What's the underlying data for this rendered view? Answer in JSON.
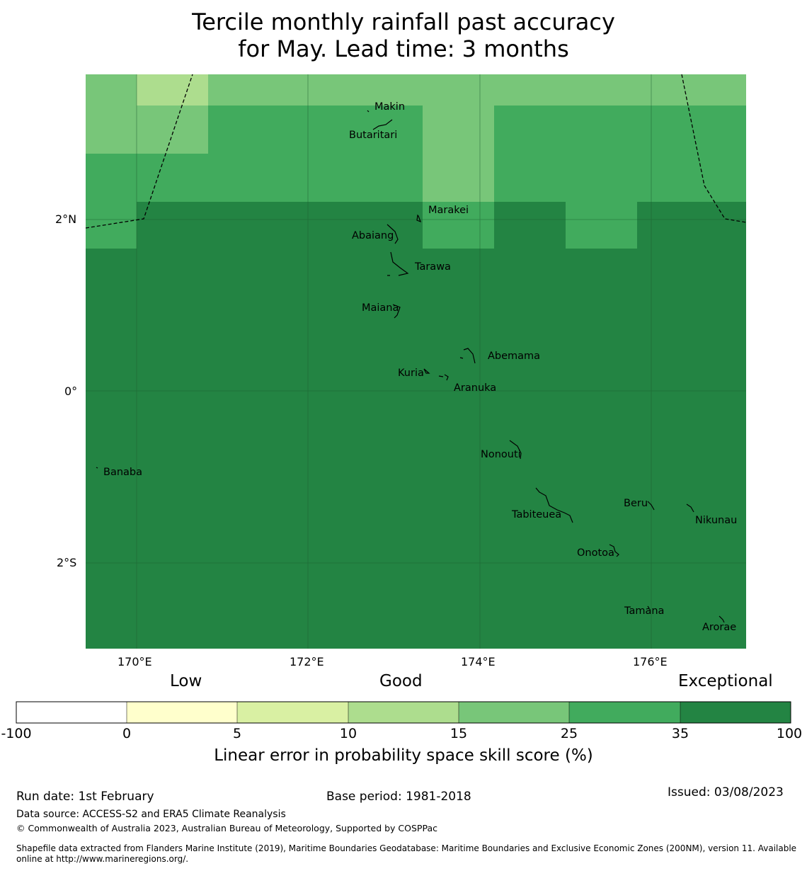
{
  "title": {
    "line1": "Tercile monthly rainfall past accuracy",
    "line2": "for May. Lead time: 3 months"
  },
  "map": {
    "lon_range": [
      169.4,
      177.1
    ],
    "lat_range": [
      -3.0,
      3.7
    ],
    "x_ticks": [
      "170°E",
      "172°E",
      "174°E",
      "176°E"
    ],
    "y_ticks": [
      "2°N",
      "0°",
      "2°S"
    ],
    "islands": [
      {
        "name": "Makin",
        "lon": 173.0,
        "lat": 3.35
      },
      {
        "name": "Butaritari",
        "lon": 172.85,
        "lat": 3.15
      },
      {
        "name": "Marakei",
        "lon": 173.3,
        "lat": 2.0
      },
      {
        "name": "Abaiang",
        "lon": 172.95,
        "lat": 1.85
      },
      {
        "name": "Tarawa",
        "lon": 173.05,
        "lat": 1.4
      },
      {
        "name": "Maiana",
        "lon": 173.0,
        "lat": 0.95
      },
      {
        "name": "Abemama",
        "lon": 173.85,
        "lat": 0.4
      },
      {
        "name": "Kuria",
        "lon": 173.4,
        "lat": 0.22
      },
      {
        "name": "Aranuka",
        "lon": 173.6,
        "lat": 0.17
      },
      {
        "name": "Nonouti",
        "lon": 174.4,
        "lat": -0.65
      },
      {
        "name": "Banaba",
        "lon": 169.55,
        "lat": -0.87
      },
      {
        "name": "Tabiteuea",
        "lon": 174.8,
        "lat": -1.3
      },
      {
        "name": "Beru",
        "lon": 176.0,
        "lat": -1.35
      },
      {
        "name": "Nikunau",
        "lon": 176.45,
        "lat": -1.38
      },
      {
        "name": "Onotoa",
        "lon": 175.55,
        "lat": -1.8
      },
      {
        "name": "Tamana",
        "lon": 175.98,
        "lat": -2.5
      },
      {
        "name": "Arorae",
        "lon": 176.82,
        "lat": -2.65
      }
    ]
  },
  "colorbar": {
    "categories": [
      "Low",
      "Good",
      "Exceptional"
    ],
    "boundaries": [
      "-100",
      "0",
      "5",
      "10",
      "15",
      "25",
      "35",
      "100"
    ],
    "colors": [
      "#ffffff",
      "#ffffcc",
      "#d9f0a3",
      "#addd8e",
      "#78c679",
      "#41ab5d",
      "#238443"
    ],
    "label": "Linear error in probability space skill score (%)"
  },
  "footer": {
    "run_date": "Run date: 1st February",
    "base_period": "Base period: 1981-2018",
    "issued": "Issued: 03/08/2023",
    "data_source": "Data source: ACCESS-S2 and ERA5 Climate Reanalysis",
    "copyright": "© Commonwealth of Australia 2023, Australian Bureau of Meteorology, Supported by COSPPac",
    "shapefile_1": "Shapefile data extracted from Flanders Marine Institute (2019), Maritime Boundaries Geodatabase: Maritime Boundaries and Exclusive Economic Zones (200NM), version 11. Available",
    "shapefile_2": "online at http://www.marineregions.org/."
  }
}
